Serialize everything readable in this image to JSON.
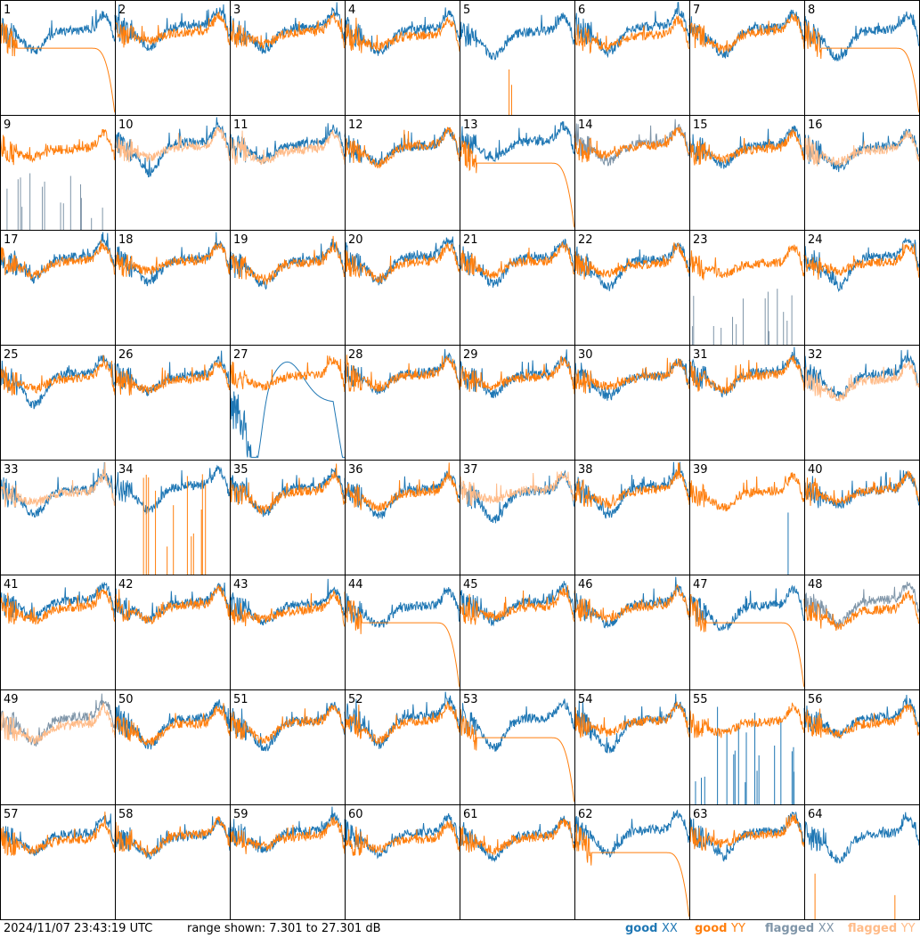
{
  "chart_data": {
    "type": "line",
    "layout": "small-multiples 8x8",
    "panels": [
      1,
      2,
      3,
      4,
      5,
      6,
      7,
      8,
      9,
      10,
      11,
      12,
      13,
      14,
      15,
      16,
      17,
      18,
      19,
      20,
      21,
      22,
      23,
      24,
      25,
      26,
      27,
      28,
      29,
      30,
      31,
      32,
      33,
      34,
      35,
      36,
      37,
      38,
      39,
      40,
      41,
      42,
      43,
      44,
      45,
      46,
      47,
      48,
      49,
      50,
      51,
      52,
      53,
      54,
      55,
      56,
      57,
      58,
      59,
      60,
      61,
      62,
      63,
      64
    ],
    "range_db": [
      7.301,
      27.301
    ],
    "series": [
      {
        "name": "good XX",
        "color": "#1f77b4"
      },
      {
        "name": "good YY",
        "color": "#ff7f0e"
      },
      {
        "name": "flagged XX",
        "color": "#7f95a8"
      },
      {
        "name": "flagged YY",
        "color": "#ffbb88"
      }
    ],
    "panel_notes": {
      "flagged_xx": [
        9,
        14,
        23,
        48,
        49
      ],
      "flagged_yy": [
        10,
        11,
        16,
        32,
        33,
        37,
        49
      ],
      "yy_rolloff": [
        1,
        8,
        13,
        44,
        47,
        53,
        62
      ],
      "xx_low_curve": [
        27
      ],
      "xx_spikes_only": [
        39,
        55
      ],
      "yy_spikes_only": [
        5,
        34,
        64
      ]
    }
  },
  "footer": {
    "timestamp": "2024/11/07 23:43:19 UTC",
    "range_text": "range shown: 7.301 to 27.301 dB",
    "legend": {
      "good_xx": {
        "word": "good",
        "pol": "XX"
      },
      "good_yy": {
        "word": "good",
        "pol": "YY"
      },
      "flagged_xx": {
        "word": "flagged",
        "pol": "XX"
      },
      "flagged_yy": {
        "word": "flagged",
        "pol": "YY"
      }
    }
  }
}
